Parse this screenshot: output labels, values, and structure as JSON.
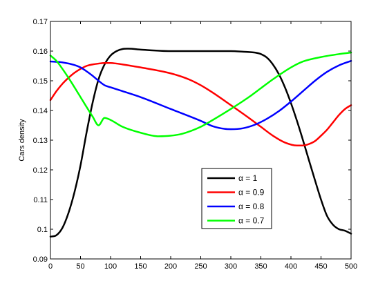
{
  "chart_data": {
    "type": "line",
    "title": "",
    "xlabel": "",
    "ylabel": "Cars density",
    "xlim": [
      0,
      500
    ],
    "ylim": [
      0.09,
      0.17
    ],
    "xticks": [
      0,
      50,
      100,
      150,
      200,
      250,
      300,
      350,
      400,
      450,
      500
    ],
    "yticks": [
      0.09,
      0.1,
      0.11,
      0.12,
      0.13,
      0.14,
      0.15,
      0.16,
      0.17
    ],
    "xtick_labels": [
      "0",
      "50",
      "100",
      "150",
      "200",
      "250",
      "300",
      "350",
      "400",
      "450",
      "500"
    ],
    "ytick_labels": [
      "0.09",
      "0.1",
      "0.11",
      "0.12",
      "0.13",
      "0.14",
      "0.15",
      "0.16",
      "0.17"
    ],
    "grid": false,
    "legend_position": "lower-right",
    "series": [
      {
        "name": "α = 1",
        "color": "#000000",
        "x": [
          0,
          10,
          20,
          30,
          40,
          50,
          60,
          70,
          80,
          90,
          100,
          110,
          120,
          130,
          150,
          200,
          250,
          300,
          320,
          340,
          350,
          360,
          370,
          380,
          390,
          400,
          410,
          420,
          430,
          440,
          450,
          460,
          470,
          480,
          490,
          500
        ],
        "y": [
          0.0975,
          0.098,
          0.1005,
          0.1055,
          0.1125,
          0.1215,
          0.1325,
          0.1425,
          0.1505,
          0.1555,
          0.1585,
          0.16,
          0.1607,
          0.1608,
          0.1605,
          0.16,
          0.16,
          0.16,
          0.1598,
          0.1595,
          0.159,
          0.1578,
          0.1555,
          0.1522,
          0.1478,
          0.1425,
          0.1365,
          0.13,
          0.1232,
          0.1165,
          0.11,
          0.1045,
          0.1015,
          0.1,
          0.0995,
          0.0985
        ]
      },
      {
        "name": "α = 0.9",
        "color": "#ff0000",
        "x": [
          0,
          10,
          20,
          30,
          40,
          50,
          60,
          70,
          80,
          90,
          100,
          110,
          120,
          150,
          200,
          230,
          250,
          270,
          300,
          330,
          350,
          370,
          390,
          410,
          420,
          430,
          440,
          450,
          460,
          470,
          480,
          490,
          500
        ],
        "y": [
          0.1435,
          0.1465,
          0.149,
          0.151,
          0.1527,
          0.154,
          0.155,
          0.1555,
          0.1558,
          0.156,
          0.156,
          0.1558,
          0.1555,
          0.1545,
          0.1525,
          0.1505,
          0.1485,
          0.146,
          0.1418,
          0.1375,
          0.1345,
          0.1315,
          0.1292,
          0.1282,
          0.1282,
          0.1287,
          0.1297,
          0.1315,
          0.1335,
          0.136,
          0.1385,
          0.1405,
          0.1418
        ]
      },
      {
        "name": "α = 0.8",
        "color": "#0000ff",
        "x": [
          0,
          20,
          40,
          50,
          60,
          70,
          80,
          90,
          100,
          120,
          150,
          200,
          250,
          270,
          290,
          300,
          320,
          340,
          360,
          380,
          400,
          420,
          440,
          460,
          480,
          500
        ],
        "y": [
          0.1565,
          0.1562,
          0.1553,
          0.1545,
          0.1532,
          0.1517,
          0.15,
          0.1485,
          0.1478,
          0.1465,
          0.1445,
          0.1405,
          0.1365,
          0.1347,
          0.1338,
          0.1337,
          0.134,
          0.1352,
          0.1372,
          0.1398,
          0.143,
          0.1465,
          0.15,
          0.153,
          0.1552,
          0.1567
        ]
      },
      {
        "name": "α = 0.7",
        "color": "#00ff00",
        "x": [
          0,
          10,
          20,
          30,
          40,
          50,
          60,
          70,
          80,
          90,
          100,
          120,
          150,
          180,
          200,
          220,
          250,
          270,
          300,
          330,
          350,
          370,
          400,
          420,
          450,
          480,
          500
        ],
        "y": [
          0.1585,
          0.1567,
          0.154,
          0.151,
          0.1478,
          0.1445,
          0.1412,
          0.138,
          0.135,
          0.1375,
          0.1368,
          0.1345,
          0.1325,
          0.1313,
          0.1315,
          0.1322,
          0.1345,
          0.1368,
          0.1405,
          0.1445,
          0.1475,
          0.1505,
          0.1545,
          0.1565,
          0.158,
          0.159,
          0.1595
        ]
      }
    ]
  }
}
